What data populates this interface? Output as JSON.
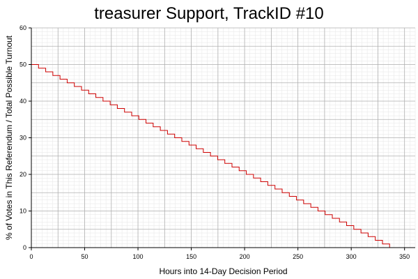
{
  "chart_data": {
    "type": "line",
    "title": "treasurer Support, TrackID #10",
    "xlabel": "Hours into 14-Day Decision Period",
    "ylabel": "% of Votes in This Referendum / Total Possible Turnout",
    "xlim": [
      0,
      360
    ],
    "ylim": [
      0,
      60
    ],
    "x_ticks": [
      0,
      50,
      100,
      150,
      200,
      250,
      300,
      350
    ],
    "y_ticks": [
      0,
      10,
      20,
      30,
      40,
      50,
      60
    ],
    "grid": true,
    "minor_grid": true,
    "legend": "none",
    "series": [
      {
        "color": "#cc0000",
        "step": "post",
        "x": [
          0,
          336
        ],
        "y": [
          50,
          0
        ]
      }
    ]
  }
}
